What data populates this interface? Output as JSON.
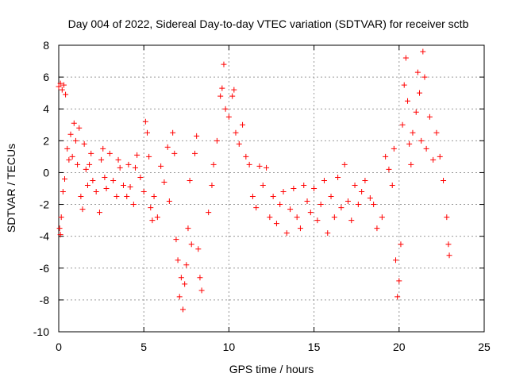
{
  "chart_data": {
    "type": "scatter",
    "title": "Day 004 of 2022, Sidereal Day-to-day VTEC variation (SDTVAR) for receiver sctb",
    "xlabel": "GPS time / hours",
    "ylabel": "SDTVAR / TECUs",
    "xlim": [
      0,
      25
    ],
    "ylim": [
      -10,
      8
    ],
    "xticks": [
      0,
      5,
      10,
      15,
      20,
      25
    ],
    "yticks": [
      -10,
      -8,
      -6,
      -4,
      -2,
      0,
      2,
      4,
      6,
      8
    ],
    "xtick_labels": [
      "0",
      "5",
      "10",
      "15",
      "20",
      "25"
    ],
    "ytick_labels": [
      "-10",
      "-8",
      "-6",
      "-4",
      "-2",
      "0",
      "2",
      "4",
      "6",
      "8"
    ],
    "grid": true,
    "marker": "+",
    "color": "#ff0000",
    "series": [
      {
        "name": "sctb",
        "points": [
          [
            0.0,
            5.4
          ],
          [
            0.1,
            5.6
          ],
          [
            0.2,
            5.2
          ],
          [
            0.3,
            5.5
          ],
          [
            0.4,
            4.9
          ],
          [
            0.05,
            -3.5
          ],
          [
            0.15,
            -2.8
          ],
          [
            0.25,
            -1.2
          ],
          [
            0.35,
            -0.4
          ],
          [
            0.1,
            -3.9
          ],
          [
            0.5,
            1.5
          ],
          [
            0.6,
            0.8
          ],
          [
            0.7,
            2.4
          ],
          [
            0.8,
            1.0
          ],
          [
            0.9,
            3.1
          ],
          [
            1.0,
            2.0
          ],
          [
            1.1,
            0.5
          ],
          [
            1.2,
            2.8
          ],
          [
            1.3,
            -1.5
          ],
          [
            1.4,
            -2.3
          ],
          [
            1.5,
            1.8
          ],
          [
            1.6,
            0.2
          ],
          [
            1.7,
            -0.8
          ],
          [
            1.8,
            0.5
          ],
          [
            1.9,
            1.2
          ],
          [
            2.0,
            -0.5
          ],
          [
            2.2,
            -1.2
          ],
          [
            2.4,
            -2.5
          ],
          [
            2.5,
            0.8
          ],
          [
            2.6,
            1.5
          ],
          [
            2.7,
            -0.3
          ],
          [
            2.8,
            -1.0
          ],
          [
            3.0,
            1.2
          ],
          [
            3.2,
            -0.5
          ],
          [
            3.4,
            -1.5
          ],
          [
            3.5,
            0.8
          ],
          [
            3.6,
            0.3
          ],
          [
            3.8,
            -0.8
          ],
          [
            4.0,
            -1.5
          ],
          [
            4.1,
            0.5
          ],
          [
            4.2,
            -0.9
          ],
          [
            4.4,
            -2.0
          ],
          [
            4.5,
            0.3
          ],
          [
            4.6,
            1.1
          ],
          [
            4.8,
            -0.3
          ],
          [
            5.0,
            -1.2
          ],
          [
            5.1,
            3.2
          ],
          [
            5.2,
            2.5
          ],
          [
            5.3,
            1.0
          ],
          [
            5.4,
            -2.2
          ],
          [
            5.5,
            -3.0
          ],
          [
            5.6,
            -1.5
          ],
          [
            5.8,
            -2.8
          ],
          [
            6.0,
            0.4
          ],
          [
            6.2,
            -0.6
          ],
          [
            6.4,
            1.6
          ],
          [
            6.5,
            -1.8
          ],
          [
            6.7,
            2.5
          ],
          [
            6.8,
            1.2
          ],
          [
            6.9,
            -4.2
          ],
          [
            7.0,
            -5.5
          ],
          [
            7.1,
            -7.8
          ],
          [
            7.2,
            -6.6
          ],
          [
            7.3,
            -8.6
          ],
          [
            7.4,
            -7.0
          ],
          [
            7.5,
            -5.8
          ],
          [
            7.6,
            -3.5
          ],
          [
            7.7,
            -0.5
          ],
          [
            7.8,
            -4.5
          ],
          [
            8.0,
            1.2
          ],
          [
            8.1,
            2.3
          ],
          [
            8.2,
            -4.8
          ],
          [
            8.3,
            -6.6
          ],
          [
            8.4,
            -7.4
          ],
          [
            8.8,
            -2.5
          ],
          [
            9.0,
            -0.8
          ],
          [
            9.1,
            0.5
          ],
          [
            9.3,
            2.0
          ],
          [
            9.5,
            4.8
          ],
          [
            9.6,
            5.3
          ],
          [
            9.7,
            6.8
          ],
          [
            9.8,
            4.0
          ],
          [
            10.0,
            3.5
          ],
          [
            10.2,
            4.8
          ],
          [
            10.3,
            5.2
          ],
          [
            10.4,
            2.5
          ],
          [
            10.6,
            1.8
          ],
          [
            10.8,
            3.0
          ],
          [
            11.0,
            1.0
          ],
          [
            11.2,
            0.5
          ],
          [
            11.4,
            -1.5
          ],
          [
            11.6,
            -2.2
          ],
          [
            11.8,
            0.4
          ],
          [
            12.0,
            -0.8
          ],
          [
            12.2,
            0.3
          ],
          [
            12.4,
            -2.8
          ],
          [
            12.6,
            -1.5
          ],
          [
            12.8,
            -3.2
          ],
          [
            13.0,
            -2.0
          ],
          [
            13.2,
            -1.2
          ],
          [
            13.4,
            -3.8
          ],
          [
            13.6,
            -2.3
          ],
          [
            13.8,
            -1.0
          ],
          [
            14.0,
            -2.8
          ],
          [
            14.2,
            -3.5
          ],
          [
            14.4,
            -0.8
          ],
          [
            14.6,
            -1.8
          ],
          [
            14.8,
            -2.5
          ],
          [
            15.0,
            -1.0
          ],
          [
            15.2,
            -3.0
          ],
          [
            15.4,
            -2.0
          ],
          [
            15.6,
            -0.5
          ],
          [
            15.8,
            -3.8
          ],
          [
            16.0,
            -1.5
          ],
          [
            16.2,
            -2.8
          ],
          [
            16.4,
            -0.3
          ],
          [
            16.6,
            -2.2
          ],
          [
            16.8,
            0.5
          ],
          [
            17.0,
            -1.8
          ],
          [
            17.2,
            -3.0
          ],
          [
            17.4,
            -0.8
          ],
          [
            17.6,
            -2.0
          ],
          [
            17.8,
            -1.2
          ],
          [
            18.0,
            -0.5
          ],
          [
            18.3,
            -1.6
          ],
          [
            18.5,
            -2.0
          ],
          [
            18.7,
            -3.5
          ],
          [
            19.0,
            -2.8
          ],
          [
            19.2,
            1.0
          ],
          [
            19.4,
            0.2
          ],
          [
            19.6,
            -0.8
          ],
          [
            19.7,
            1.5
          ],
          [
            19.8,
            -5.5
          ],
          [
            19.9,
            -7.8
          ],
          [
            20.0,
            -6.8
          ],
          [
            20.1,
            -4.5
          ],
          [
            20.2,
            3.0
          ],
          [
            20.3,
            5.5
          ],
          [
            20.4,
            7.2
          ],
          [
            20.5,
            4.5
          ],
          [
            20.6,
            1.8
          ],
          [
            20.7,
            0.5
          ],
          [
            20.8,
            2.5
          ],
          [
            21.0,
            3.8
          ],
          [
            21.1,
            6.3
          ],
          [
            21.2,
            5.0
          ],
          [
            21.3,
            2.0
          ],
          [
            21.4,
            7.6
          ],
          [
            21.5,
            6.0
          ],
          [
            21.6,
            1.5
          ],
          [
            21.8,
            3.5
          ],
          [
            22.0,
            0.8
          ],
          [
            22.2,
            2.5
          ],
          [
            22.4,
            1.0
          ],
          [
            22.6,
            -0.5
          ],
          [
            22.8,
            -2.8
          ],
          [
            22.9,
            -4.5
          ],
          [
            22.95,
            -5.2
          ]
        ]
      }
    ]
  }
}
